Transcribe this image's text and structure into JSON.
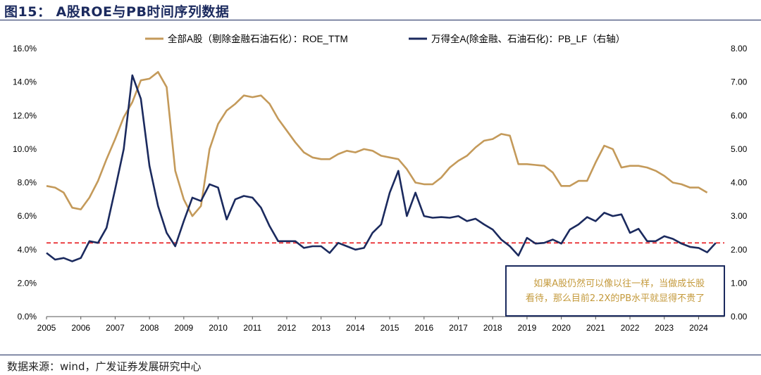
{
  "header": {
    "title": "图15：  A股ROE与PB时间序列数据"
  },
  "footer": {
    "source": "数据来源：wind，广发证券发展研究中心"
  },
  "annotation": {
    "line1": "如果A股仍然可以像以往一样，当做成长股",
    "line2": "看待，那么目前2.2X的PB水平就显得不贵了"
  },
  "colors": {
    "roe": "#c49a5a",
    "pb": "#1b2a5e",
    "reference": "#e8262b",
    "frame": "#1b2a5e"
  },
  "chart_data": {
    "type": "line",
    "title": "A股ROE与PB时间序列数据",
    "x_ticks": [
      "2005",
      "2006",
      "2007",
      "2008",
      "2009",
      "2010",
      "2011",
      "2012",
      "2013",
      "2014",
      "2015",
      "2016",
      "2017",
      "2018",
      "2019",
      "2020",
      "2021",
      "2022",
      "2023",
      "2024"
    ],
    "x_range": [
      2005,
      2024.75
    ],
    "y_left": {
      "range": [
        0,
        16
      ],
      "ticks": [
        "0.0%",
        "2.0%",
        "4.0%",
        "6.0%",
        "8.0%",
        "10.0%",
        "12.0%",
        "14.0%",
        "16.0%"
      ]
    },
    "y_right": {
      "range": [
        0,
        8
      ],
      "ticks": [
        "0.00",
        "1.00",
        "2.00",
        "3.00",
        "4.00",
        "5.00",
        "6.00",
        "7.00",
        "8.00"
      ]
    },
    "legend_position": "top-center",
    "reference_line": {
      "axis": "right",
      "value": 2.2
    },
    "series": [
      {
        "name": "全部A股（剔除金融石油石化）：ROE_TTM",
        "axis": "left",
        "unit": "%",
        "x": [
          2005.0,
          2005.25,
          2005.5,
          2005.75,
          2006.0,
          2006.25,
          2006.5,
          2006.75,
          2007.0,
          2007.25,
          2007.5,
          2007.75,
          2008.0,
          2008.25,
          2008.5,
          2008.75,
          2009.0,
          2009.25,
          2009.5,
          2009.75,
          2010.0,
          2010.25,
          2010.5,
          2010.75,
          2011.0,
          2011.25,
          2011.5,
          2011.75,
          2012.0,
          2012.25,
          2012.5,
          2012.75,
          2013.0,
          2013.25,
          2013.5,
          2013.75,
          2014.0,
          2014.25,
          2014.5,
          2014.75,
          2015.0,
          2015.25,
          2015.5,
          2015.75,
          2016.0,
          2016.25,
          2016.5,
          2016.75,
          2017.0,
          2017.25,
          2017.5,
          2017.75,
          2018.0,
          2018.25,
          2018.5,
          2018.75,
          2019.0,
          2019.25,
          2019.5,
          2019.75,
          2020.0,
          2020.25,
          2020.5,
          2020.75,
          2021.0,
          2021.25,
          2021.5,
          2021.75,
          2022.0,
          2022.25,
          2022.5,
          2022.75,
          2023.0,
          2023.25,
          2023.5,
          2023.75,
          2024.0,
          2024.25
        ],
        "values": [
          7.8,
          7.7,
          7.4,
          6.5,
          6.4,
          7.1,
          8.1,
          9.4,
          10.6,
          11.9,
          12.8,
          14.1,
          14.2,
          14.6,
          13.7,
          8.7,
          7.0,
          6.0,
          6.6,
          10.0,
          11.5,
          12.3,
          12.7,
          13.2,
          13.1,
          13.2,
          12.7,
          11.8,
          11.1,
          10.4,
          9.8,
          9.5,
          9.4,
          9.4,
          9.7,
          9.9,
          9.8,
          10.0,
          9.9,
          9.6,
          9.5,
          9.4,
          8.8,
          8.0,
          7.9,
          7.9,
          8.3,
          8.9,
          9.3,
          9.6,
          10.1,
          10.5,
          10.6,
          10.9,
          10.8,
          9.1,
          9.1,
          9.05,
          9.0,
          8.6,
          7.8,
          7.8,
          8.1,
          8.1,
          9.2,
          10.2,
          10.0,
          8.9,
          9.0,
          9.0,
          8.9,
          8.7,
          8.4,
          8.0,
          7.9,
          7.7,
          7.7,
          7.4
        ]
      },
      {
        "name": "万得全A(除金融、石油石化)：PB_LF（右轴）",
        "axis": "right",
        "unit": "x",
        "x": [
          2005.0,
          2005.25,
          2005.5,
          2005.75,
          2006.0,
          2006.25,
          2006.5,
          2006.75,
          2007.0,
          2007.25,
          2007.5,
          2007.75,
          2008.0,
          2008.25,
          2008.5,
          2008.75,
          2009.0,
          2009.25,
          2009.5,
          2009.75,
          2010.0,
          2010.25,
          2010.5,
          2010.75,
          2011.0,
          2011.25,
          2011.5,
          2011.75,
          2012.0,
          2012.25,
          2012.5,
          2012.75,
          2013.0,
          2013.25,
          2013.5,
          2013.75,
          2014.0,
          2014.25,
          2014.5,
          2014.75,
          2015.0,
          2015.25,
          2015.5,
          2015.75,
          2016.0,
          2016.25,
          2016.5,
          2016.75,
          2017.0,
          2017.25,
          2017.5,
          2017.75,
          2018.0,
          2018.25,
          2018.5,
          2018.75,
          2019.0,
          2019.25,
          2019.5,
          2019.75,
          2020.0,
          2020.25,
          2020.5,
          2020.75,
          2021.0,
          2021.25,
          2021.5,
          2021.75,
          2022.0,
          2022.25,
          2022.5,
          2022.75,
          2023.0,
          2023.25,
          2023.5,
          2023.75,
          2024.0,
          2024.25,
          2024.5
        ],
        "values": [
          1.9,
          1.7,
          1.75,
          1.65,
          1.75,
          2.25,
          2.2,
          2.65,
          3.8,
          5.0,
          7.2,
          6.5,
          4.5,
          3.3,
          2.5,
          2.1,
          2.85,
          3.55,
          3.45,
          3.95,
          3.85,
          2.9,
          3.5,
          3.6,
          3.55,
          3.25,
          2.7,
          2.25,
          2.25,
          2.25,
          2.05,
          2.1,
          2.1,
          1.9,
          2.2,
          2.1,
          2.0,
          2.05,
          2.5,
          2.75,
          3.7,
          4.35,
          3.0,
          3.7,
          3.0,
          2.95,
          2.97,
          2.95,
          3.0,
          2.85,
          2.92,
          2.75,
          2.6,
          2.3,
          2.1,
          1.82,
          2.35,
          2.18,
          2.2,
          2.3,
          2.18,
          2.6,
          2.75,
          2.97,
          2.85,
          3.1,
          3.0,
          3.05,
          2.5,
          2.62,
          2.25,
          2.25,
          2.4,
          2.32,
          2.18,
          2.08,
          2.05,
          1.92,
          2.2
        ]
      }
    ]
  }
}
